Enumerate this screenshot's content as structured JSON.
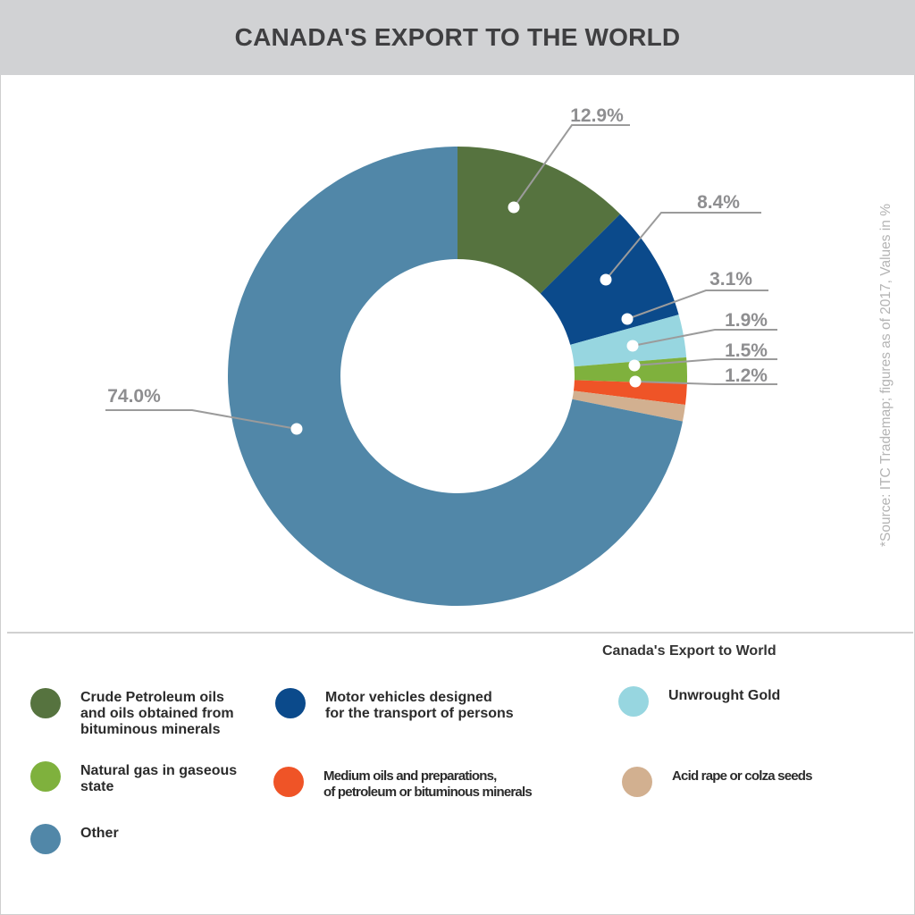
{
  "title": "CANADA'S EXPORT TO THE WORLD",
  "source": "*Source: ITC Trademap; figures as of 2017, Values in %",
  "legend_title": "Canada's Export to World",
  "chart_data": {
    "type": "pie",
    "donut": true,
    "title": "CANADA'S EXPORT TO THE WORLD",
    "unit": "%",
    "slices": [
      {
        "name": "Crude Petroleum oils and oils obtained from bituminous minerals",
        "value": 12.9,
        "label": "12.9%",
        "color": "#56733f"
      },
      {
        "name": "Motor vehicles designed for the transport of persons",
        "value": 8.4,
        "label": "8.4%",
        "color": "#0b4a8b"
      },
      {
        "name": "Unwrought Gold",
        "value": 3.1,
        "label": "3.1%",
        "color": "#97d6e0"
      },
      {
        "name": "Natural gas in gaseous state",
        "value": 1.9,
        "label": "1.9%",
        "color": "#7fb13d"
      },
      {
        "name": "Medium oils and preparations, of petroleum or bituminous minerals",
        "value": 1.5,
        "label": "1.5%",
        "color": "#ef5427"
      },
      {
        "name": "Acid rape or colza seeds",
        "value": 1.2,
        "label": "1.2%",
        "color": "#d2b090"
      },
      {
        "name": "Other",
        "value": 74.0,
        "label": "74.0%",
        "color": "#5187a8"
      }
    ],
    "legend_placement": "bottom"
  },
  "legend": [
    {
      "lines": [
        "Crude Petroleum oils",
        "and oils obtained from",
        "bituminous minerals"
      ],
      "color": "#56733f"
    },
    {
      "lines": [
        "Motor vehicles designed",
        "for the transport of persons"
      ],
      "color": "#0b4a8b"
    },
    {
      "lines": [
        "Unwrought Gold"
      ],
      "color": "#97d6e0"
    },
    {
      "lines": [
        "Natural gas in gaseous",
        "state"
      ],
      "color": "#7fb13d"
    },
    {
      "lines": [
        "Medium oils and preparations,",
        "of petroleum or bituminous minerals"
      ],
      "color": "#ef5427"
    },
    {
      "lines": [
        "Acid rape or colza seeds"
      ],
      "color": "#d2b090"
    },
    {
      "lines": [
        "Other"
      ],
      "color": "#5187a8"
    }
  ]
}
